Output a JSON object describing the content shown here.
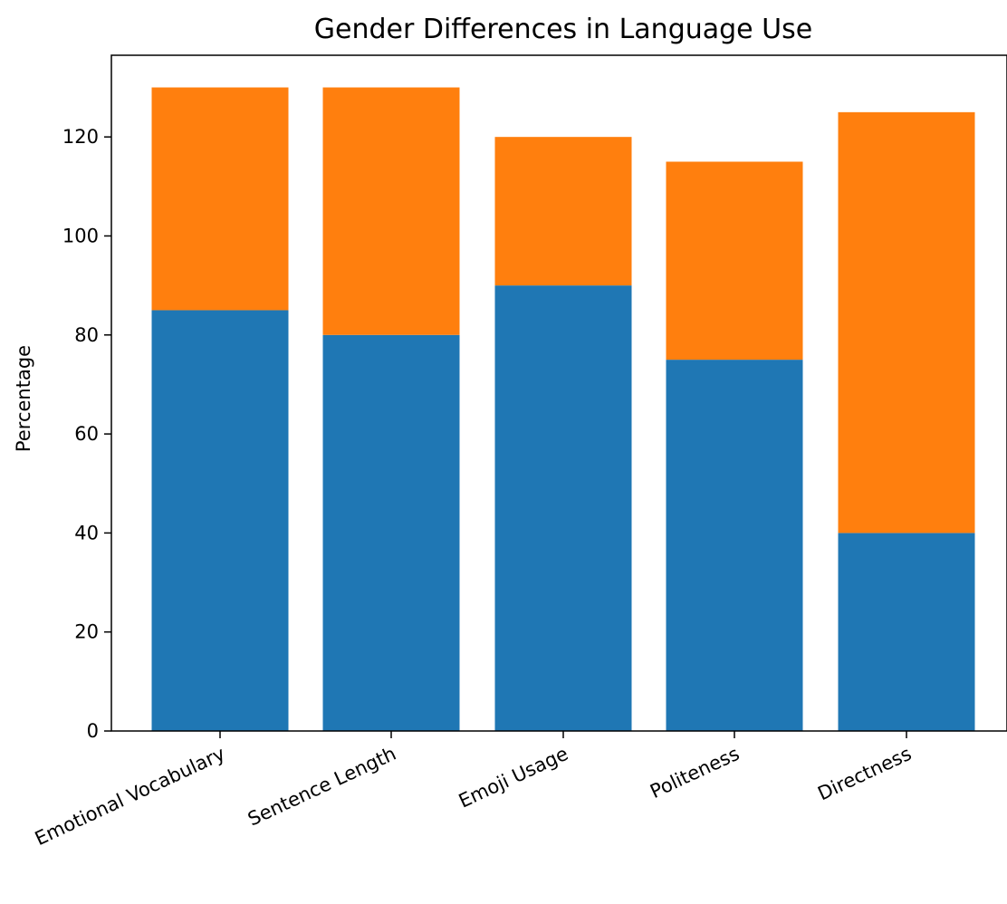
{
  "chart_data": {
    "type": "bar",
    "stacked": true,
    "title": "Gender Differences in Language Use",
    "xlabel": "",
    "ylabel": "Percentage",
    "categories": [
      "Emotional Vocabulary",
      "Sentence Length",
      "Emoji Usage",
      "Politeness",
      "Directness"
    ],
    "series": [
      {
        "values": [
          85,
          80,
          90,
          75,
          40
        ],
        "color": "#1f77b4"
      },
      {
        "values": [
          45,
          50,
          30,
          40,
          85
        ],
        "color": "#ff7f0e"
      }
    ],
    "ylim": [
      0,
      136.5
    ],
    "yticks": [
      0,
      20,
      40,
      60,
      80,
      100,
      120
    ],
    "grid": false,
    "legend": "none"
  }
}
